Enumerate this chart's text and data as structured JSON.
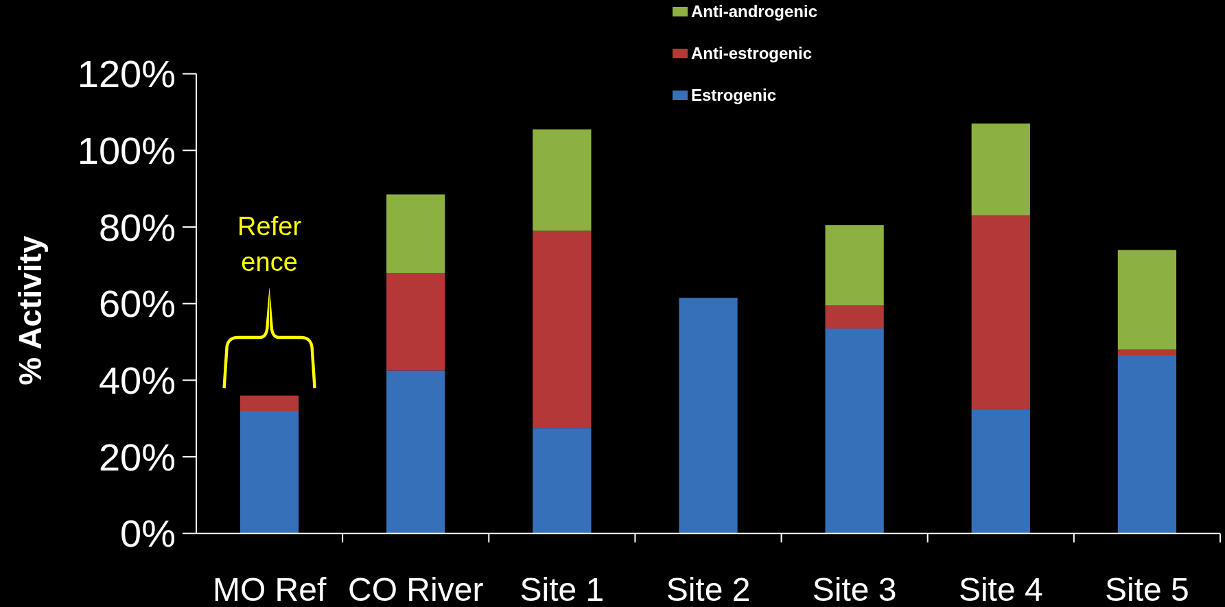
{
  "chart_data": {
    "type": "bar",
    "stacked": true,
    "categories": [
      "MO Ref",
      "CO River",
      "Site 1",
      "Site 2",
      "Site 3",
      "Site 4",
      "Site 5"
    ],
    "series": [
      {
        "name": "Estrogenic",
        "color": "#3670b8",
        "values": [
          32,
          42.5,
          27.5,
          61.5,
          53.5,
          32.5,
          46.5
        ]
      },
      {
        "name": "Anti-estrogenic",
        "color": "#b43838",
        "values": [
          4,
          25.5,
          51.5,
          null,
          6,
          50.5,
          1.5
        ]
      },
      {
        "name": "Anti-androgenic",
        "color": "#8cb142",
        "values": [
          null,
          20.5,
          26.5,
          null,
          21,
          24,
          26
        ]
      }
    ],
    "ylabel": "% Activity",
    "ylim": [
      0,
      120
    ],
    "yticks": [
      {
        "value": 0,
        "label": "0%"
      },
      {
        "value": 20,
        "label": "20%"
      },
      {
        "value": 40,
        "label": "40%"
      },
      {
        "value": 60,
        "label": "60%"
      },
      {
        "value": 80,
        "label": "80%"
      },
      {
        "value": 100,
        "label": "100%"
      },
      {
        "value": 120,
        "label": "120%"
      }
    ],
    "legend": "top",
    "annotations": [
      "Refer\nence"
    ]
  }
}
